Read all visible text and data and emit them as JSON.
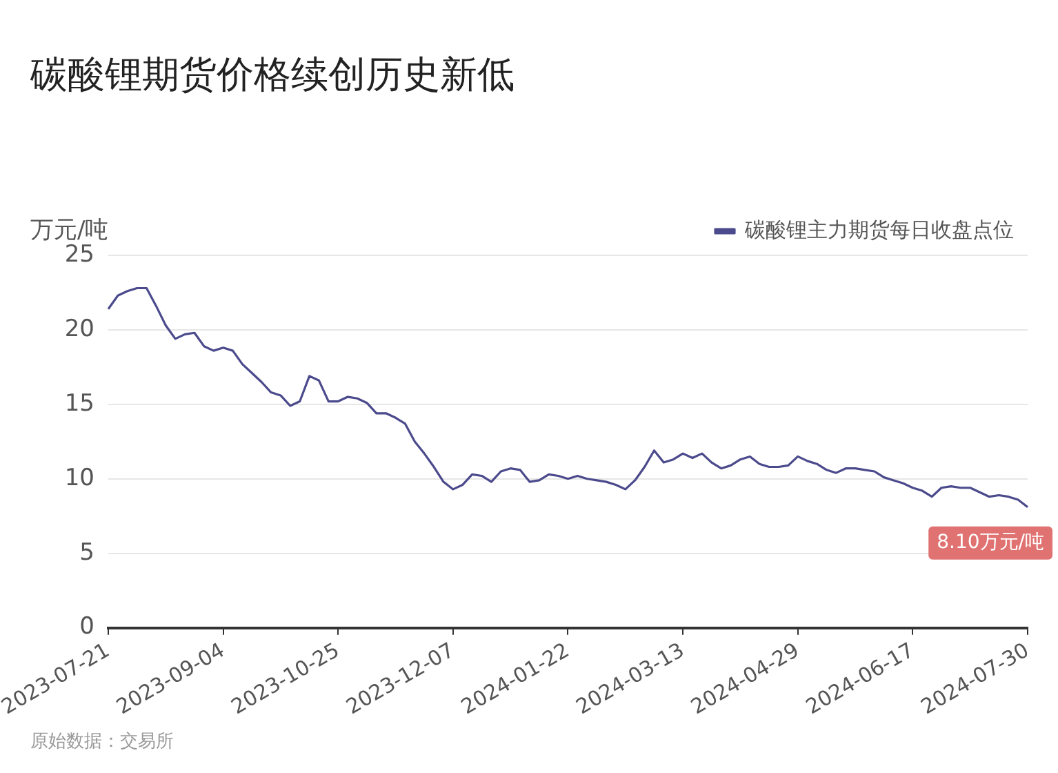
{
  "chart_data": {
    "type": "line",
    "title": "碳酸锂期货价格续创历史新低",
    "ylabel": "万元/吨",
    "categories": [
      "2023-07-21",
      null,
      null,
      null,
      null,
      null,
      null,
      null,
      null,
      null,
      null,
      null,
      "2023-09-04",
      null,
      null,
      null,
      null,
      null,
      null,
      null,
      null,
      null,
      null,
      null,
      "2023-10-25",
      null,
      null,
      null,
      null,
      null,
      null,
      null,
      null,
      null,
      null,
      null,
      "2023-12-07",
      null,
      null,
      null,
      null,
      null,
      null,
      null,
      null,
      null,
      null,
      null,
      "2024-01-22",
      null,
      null,
      null,
      null,
      null,
      null,
      null,
      null,
      null,
      null,
      null,
      "2024-03-13",
      null,
      null,
      null,
      null,
      null,
      null,
      null,
      null,
      null,
      null,
      null,
      "2024-04-29",
      null,
      null,
      null,
      null,
      null,
      null,
      null,
      null,
      null,
      null,
      null,
      "2024-06-17",
      null,
      null,
      null,
      null,
      null,
      null,
      null,
      null,
      null,
      null,
      null,
      "2024-07-30"
    ],
    "series": [
      {
        "name": "碳酸锂主力期货每日收盘点位",
        "color": "#4b4a8c",
        "values": [
          21.4,
          22.3,
          22.6,
          22.8,
          22.8,
          21.6,
          20.3,
          19.4,
          19.7,
          19.8,
          18.9,
          18.6,
          18.8,
          18.6,
          17.7,
          17.1,
          16.5,
          15.8,
          15.6,
          14.9,
          15.2,
          16.9,
          16.6,
          15.2,
          15.2,
          15.5,
          15.4,
          15.1,
          14.4,
          14.4,
          14.1,
          13.7,
          12.5,
          11.7,
          10.8,
          9.8,
          9.3,
          9.6,
          10.3,
          10.2,
          9.8,
          10.5,
          10.7,
          10.6,
          9.8,
          9.9,
          10.3,
          10.2,
          10.0,
          10.2,
          10.0,
          9.9,
          9.8,
          9.6,
          9.3,
          9.9,
          10.8,
          11.9,
          11.1,
          11.3,
          11.7,
          11.4,
          11.7,
          11.1,
          10.7,
          10.9,
          11.3,
          11.5,
          11.0,
          10.8,
          10.8,
          10.9,
          11.5,
          11.2,
          11.0,
          10.6,
          10.4,
          10.7,
          10.7,
          10.6,
          10.5,
          10.1,
          9.9,
          9.7,
          9.4,
          9.2,
          8.8,
          9.4,
          9.5,
          9.4,
          9.4,
          9.1,
          8.8,
          8.9,
          8.8,
          8.6,
          8.1
        ]
      }
    ],
    "ylim": [
      0,
      25
    ],
    "yticks": [
      0,
      5,
      10,
      15,
      20,
      25
    ],
    "grid": "y",
    "legend": "top right",
    "marker": "none",
    "line_style": "solid",
    "annotations": [
      {
        "text": "8.10万元/吨",
        "x": "2024-07-30",
        "y": 8.1
      },
      "原始数据：交易所"
    ]
  }
}
